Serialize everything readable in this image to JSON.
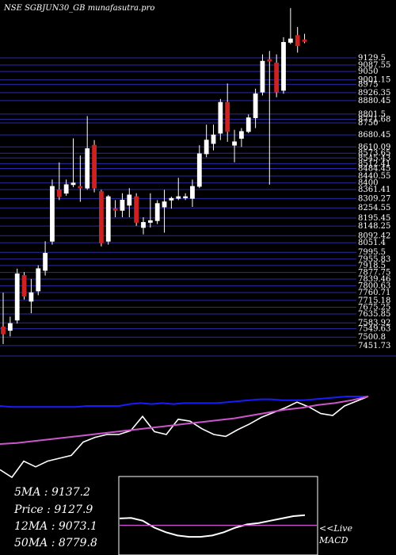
{
  "header": {
    "title": "NSE SGBJUN30_GB munafasutra.pro"
  },
  "colors": {
    "background": "#000000",
    "grid": "#2a2aa8",
    "candle_up": "#ffffff",
    "candle_down": "#cc2222",
    "wick": "#ffffff",
    "line_fast": "#ffffff",
    "line_mid": "#1a1aff",
    "line_slow": "#cc55cc",
    "macd_line": "#ffffff",
    "macd_signal": "#cc55cc",
    "macd_box": "#ffffff"
  },
  "stats": [
    {
      "label": "5MA",
      "value": "9137.2"
    },
    {
      "label": "Price",
      "value": "9127.9"
    },
    {
      "label": "12MA",
      "value": "9073.1"
    },
    {
      "label": "50MA",
      "value": "8779.8"
    }
  ],
  "macd_label": [
    "<<Live",
    "MACD"
  ],
  "chart_data": [
    {
      "type": "candlestick",
      "title": "NSE SGBJUN30_GB munafasutra.pro",
      "ylim": [
        7400,
        9430
      ],
      "yticks": [
        9129.5,
        9087.55,
        9050,
        9001.15,
        8975,
        8926.35,
        8880.45,
        8801.5,
        8771.68,
        8750,
        8680.45,
        8610.09,
        8573.65,
        8545.43,
        8512.41,
        8484.45,
        8440.55,
        8400,
        8361.41,
        8309.27,
        8254.55,
        8195.45,
        8148.25,
        8092.42,
        8051.4,
        7995.5,
        7955.83,
        7918.5,
        7877.75,
        7839.46,
        7800.63,
        7760.71,
        7715.18,
        7675.25,
        7635.85,
        7583.92,
        7549.63,
        7500.8,
        7451.73
      ],
      "candles": [
        {
          "o": 7560,
          "h": 7760,
          "l": 7460,
          "c": 7520
        },
        {
          "o": 7540,
          "h": 7620,
          "l": 7505,
          "c": 7580
        },
        {
          "o": 7600,
          "h": 7900,
          "l": 7580,
          "c": 7870
        },
        {
          "o": 7860,
          "h": 7880,
          "l": 7720,
          "c": 7740
        },
        {
          "o": 7710,
          "h": 7840,
          "l": 7640,
          "c": 7760
        },
        {
          "o": 7770,
          "h": 7920,
          "l": 7745,
          "c": 7900
        },
        {
          "o": 7890,
          "h": 8060,
          "l": 7860,
          "c": 7990
        },
        {
          "o": 8060,
          "h": 8420,
          "l": 8040,
          "c": 8380
        },
        {
          "o": 8360,
          "h": 8520,
          "l": 8300,
          "c": 8320
        },
        {
          "o": 8340,
          "h": 8420,
          "l": 8325,
          "c": 8390
        },
        {
          "o": 8390,
          "h": 8660,
          "l": 8375,
          "c": 8400
        },
        {
          "o": 8380,
          "h": 8560,
          "l": 8290,
          "c": 8370
        },
        {
          "o": 8370,
          "h": 8790,
          "l": 8360,
          "c": 8600
        },
        {
          "o": 8620,
          "h": 8650,
          "l": 8345,
          "c": 8370
        },
        {
          "o": 8350,
          "h": 8360,
          "l": 8030,
          "c": 8050
        },
        {
          "o": 8060,
          "h": 8330,
          "l": 8040,
          "c": 8320
        },
        {
          "o": 8250,
          "h": 8300,
          "l": 8200,
          "c": 8240
        },
        {
          "o": 8240,
          "h": 8340,
          "l": 8200,
          "c": 8300
        },
        {
          "o": 8270,
          "h": 8370,
          "l": 8200,
          "c": 8330
        },
        {
          "o": 8320,
          "h": 8340,
          "l": 8150,
          "c": 8170
        },
        {
          "o": 8140,
          "h": 8200,
          "l": 8100,
          "c": 8170
        },
        {
          "o": 8170,
          "h": 8340,
          "l": 8140,
          "c": 8180
        },
        {
          "o": 8180,
          "h": 8300,
          "l": 8160,
          "c": 8280
        },
        {
          "o": 8260,
          "h": 8360,
          "l": 8110,
          "c": 8290
        },
        {
          "o": 8300,
          "h": 8320,
          "l": 8250,
          "c": 8310
        },
        {
          "o": 8310,
          "h": 8430,
          "l": 8300,
          "c": 8320
        },
        {
          "o": 8320,
          "h": 8340,
          "l": 8300,
          "c": 8320
        },
        {
          "o": 8310,
          "h": 8420,
          "l": 8260,
          "c": 8380
        },
        {
          "o": 8380,
          "h": 8620,
          "l": 8370,
          "c": 8570
        },
        {
          "o": 8570,
          "h": 8740,
          "l": 8550,
          "c": 8650
        },
        {
          "o": 8630,
          "h": 8740,
          "l": 8590,
          "c": 8680
        },
        {
          "o": 8690,
          "h": 8890,
          "l": 8650,
          "c": 8870
        },
        {
          "o": 8870,
          "h": 8980,
          "l": 8640,
          "c": 8700
        },
        {
          "o": 8620,
          "h": 8710,
          "l": 8520,
          "c": 8640
        },
        {
          "o": 8660,
          "h": 8720,
          "l": 8610,
          "c": 8700
        },
        {
          "o": 8700,
          "h": 8800,
          "l": 8690,
          "c": 8780
        },
        {
          "o": 8780,
          "h": 8950,
          "l": 8720,
          "c": 8920
        },
        {
          "o": 8930,
          "h": 9150,
          "l": 8910,
          "c": 9110
        },
        {
          "o": 9120,
          "h": 9170,
          "l": 8390,
          "c": 9110
        },
        {
          "o": 9100,
          "h": 9150,
          "l": 8900,
          "c": 8930
        },
        {
          "o": 8940,
          "h": 9250,
          "l": 8920,
          "c": 9220
        },
        {
          "o": 9220,
          "h": 9420,
          "l": 9210,
          "c": 9240
        },
        {
          "o": 9260,
          "h": 9310,
          "l": 9160,
          "c": 9200
        },
        {
          "o": 9235,
          "h": 9270,
          "l": 9215,
          "c": 9225
        }
      ]
    },
    {
      "type": "line",
      "series": [
        {
          "key": "fast",
          "values": [
            0.23,
            0.15,
            0.32,
            0.26,
            0.32,
            0.35,
            0.38,
            0.52,
            0.57,
            0.6,
            0.6,
            0.64,
            0.79,
            0.63,
            0.6,
            0.76,
            0.74,
            0.66,
            0.6,
            0.58,
            0.65,
            0.71,
            0.78,
            0.83,
            0.88,
            0.94,
            0.89,
            0.82,
            0.8,
            0.9,
            0.95,
            1.0
          ]
        },
        {
          "key": "mid",
          "values": [
            0.9,
            0.89,
            0.89,
            0.89,
            0.89,
            0.89,
            0.89,
            0.89,
            0.9,
            0.9,
            0.9,
            0.9,
            0.92,
            0.93,
            0.92,
            0.93,
            0.92,
            0.93,
            0.93,
            0.93,
            0.93,
            0.94,
            0.95,
            0.96,
            0.97,
            0.97,
            0.96,
            0.96,
            0.96,
            0.97,
            0.98,
            0.99,
            1.0,
            1.0,
            1.0
          ]
        },
        {
          "key": "slow",
          "values": [
            0.5,
            0.51,
            0.53,
            0.55,
            0.57,
            0.59,
            0.61,
            0.63,
            0.65,
            0.67,
            0.69,
            0.71,
            0.73,
            0.75,
            0.77,
            0.8,
            0.83,
            0.86,
            0.88,
            0.91,
            0.93,
            0.96,
            1.0
          ]
        }
      ]
    },
    {
      "type": "line",
      "title": "MACD",
      "series": [
        {
          "key": "macd",
          "values": [
            0.45,
            0.46,
            0.4,
            0.25,
            0.15,
            0.08,
            0.05,
            0.05,
            0.08,
            0.15,
            0.25,
            0.32,
            0.35,
            0.4,
            0.45,
            0.5,
            0.52
          ]
        },
        {
          "key": "signal",
          "values": [
            0.3,
            0.3
          ]
        }
      ]
    }
  ]
}
